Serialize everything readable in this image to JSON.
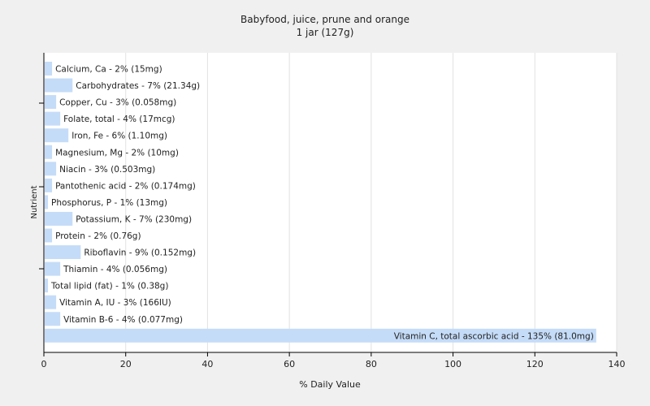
{
  "chart_data": {
    "type": "bar",
    "orientation": "horizontal",
    "title": "Babyfood, juice, prune and orange",
    "subtitle": "1 jar (127g)",
    "xlabel": "% Daily Value",
    "ylabel": "Nutrient",
    "xlim": [
      0,
      140
    ],
    "xticks": [
      0,
      20,
      40,
      60,
      80,
      100,
      120,
      140
    ],
    "grid": true,
    "bar_color": "#c5dcf8",
    "categories": [
      "Calcium, Ca",
      "Carbohydrates",
      "Copper, Cu",
      "Folate, total",
      "Iron, Fe",
      "Magnesium, Mg",
      "Niacin",
      "Pantothenic acid",
      "Phosphorus, P",
      "Potassium, K",
      "Protein",
      "Riboflavin",
      "Thiamin",
      "Total lipid (fat)",
      "Vitamin A, IU",
      "Vitamin B-6",
      "Vitamin C, total ascorbic acid"
    ],
    "values": [
      2,
      7,
      3,
      4,
      6,
      2,
      3,
      2,
      1,
      7,
      2,
      9,
      4,
      1,
      3,
      4,
      135
    ],
    "labels": [
      "Calcium, Ca - 2% (15mg)",
      "Carbohydrates - 7% (21.34g)",
      "Copper, Cu - 3% (0.058mg)",
      "Folate, total - 4% (17mcg)",
      "Iron, Fe - 6% (1.10mg)",
      "Magnesium, Mg - 2% (10mg)",
      "Niacin - 3% (0.503mg)",
      "Pantothenic acid - 2% (0.174mg)",
      "Phosphorus, P - 1% (13mg)",
      "Potassium, K - 7% (230mg)",
      "Protein - 2% (0.76g)",
      "Riboflavin - 9% (0.152mg)",
      "Thiamin - 4% (0.056mg)",
      "Total lipid (fat) - 1% (0.38g)",
      "Vitamin A, IU - 3% (166IU)",
      "Vitamin B-6 - 4% (0.077mg)",
      "Vitamin C, total ascorbic acid - 135% (81.0mg)"
    ]
  }
}
